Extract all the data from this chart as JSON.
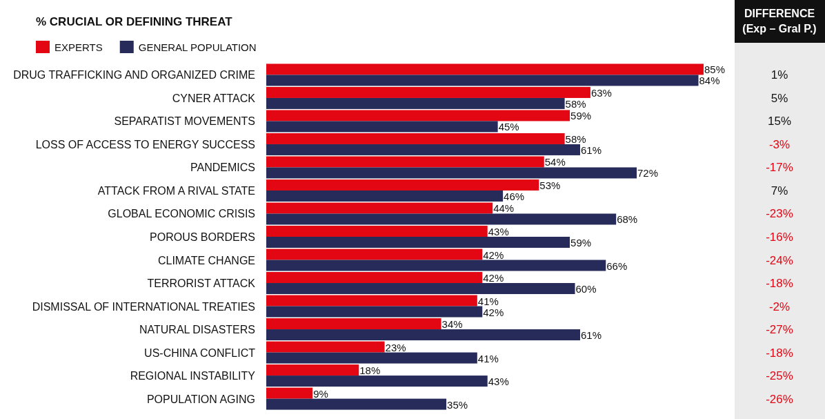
{
  "chart_data": {
    "type": "bar",
    "orientation": "horizontal",
    "title": "% CRUCIAL OR DEFINING THREAT",
    "categories": [
      "DRUG TRAFFICKING AND ORGANIZED CRIME",
      "CYNER ATTACK",
      "SEPARATIST MOVEMENTS",
      "LOSS OF ACCESS TO ENERGY SUCCESS",
      "PANDEMICS",
      "ATTACK FROM A RIVAL STATE",
      "GLOBAL ECONOMIC CRISIS",
      "POROUS BORDERS",
      "CLIMATE CHANGE",
      "TERRORIST ATTACK",
      "DISMISSAL OF INTERNATIONAL TREATIES",
      "NATURAL DISASTERS",
      "US-CHINA CONFLICT",
      "REGIONAL INSTABILITY",
      "POPULATION AGING"
    ],
    "series": [
      {
        "name": "EXPERTS",
        "color": "#e30613",
        "values": [
          85,
          63,
          59,
          58,
          54,
          53,
          44,
          43,
          42,
          42,
          41,
          34,
          23,
          18,
          9
        ],
        "value_labels": [
          "85%",
          "63%",
          "59%",
          "58%",
          "54%",
          "53%",
          "44%",
          "43%",
          "42%",
          "42%",
          "41%",
          "34%",
          "23%",
          "18%",
          "9%"
        ]
      },
      {
        "name": "GENERAL POPULATION",
        "color": "#262b5a",
        "values": [
          84,
          58,
          45,
          61,
          72,
          46,
          68,
          59,
          66,
          60,
          42,
          61,
          41,
          43,
          35
        ],
        "value_labels": [
          "84%",
          "58%",
          "45%",
          "61%",
          "72%",
          "46%",
          "68%",
          "59%",
          "66%",
          "60%",
          "42%",
          "61%",
          "41%",
          "43%",
          "35%"
        ]
      }
    ],
    "tick_labels": "y",
    "legend": "top left",
    "annotations": [
      "DIFFERENCE\n(Exp – Gral P.)",
      "1%",
      "5%",
      "15%",
      "-3%",
      "-17%",
      "7%",
      "-23%",
      "-16%",
      "-24%",
      "-18%",
      "-2%",
      "-27%",
      "-18%",
      "-25%",
      "-26%"
    ]
  }
}
